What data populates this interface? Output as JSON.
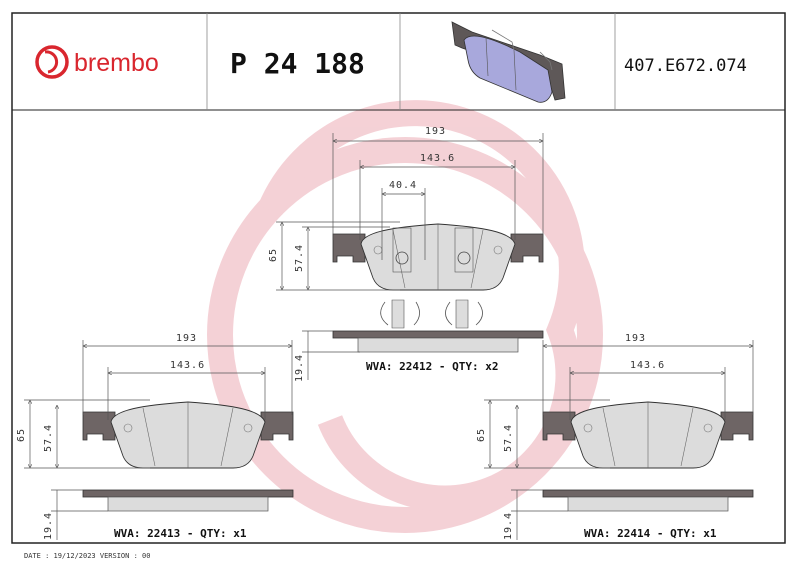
{
  "header": {
    "brand": "brembo",
    "part_number": "P 24 188",
    "reference_code": "407.E672.074"
  },
  "colors": {
    "brand_red": "#d9262e",
    "watermark": "#f3c9cf",
    "backing_plate": "#6e6565",
    "friction": "#dcdcdc",
    "thumbnail": "#a8a8dc"
  },
  "drawings": [
    {
      "width": "193",
      "inner_width": "143.6",
      "clip_width": "40.4",
      "height": "65",
      "inner_height": "57.4",
      "thickness": "19.4",
      "label": "WVA: 22412 - QTY: x2"
    },
    {
      "width": "193",
      "inner_width": "143.6",
      "height": "65",
      "inner_height": "57.4",
      "thickness": "19.4",
      "label": "WVA: 22413 - QTY: x1"
    },
    {
      "width": "193",
      "inner_width": "143.6",
      "height": "65",
      "inner_height": "57.4",
      "thickness": "19.4",
      "label": "WVA: 22414 - QTY: x1"
    }
  ],
  "footer": {
    "date_version": "DATE : 19/12/2023 VERSION : 00"
  }
}
